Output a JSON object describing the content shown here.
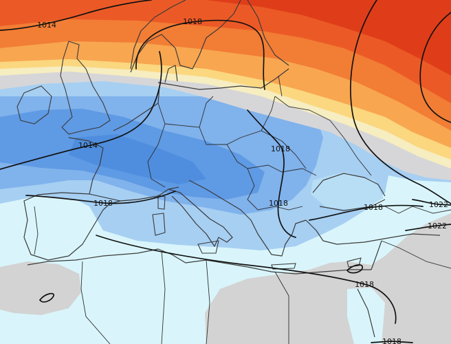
{
  "map": {
    "isobar_labels": [
      "1014",
      "1018",
      "1014",
      "1018",
      "1018",
      "1018",
      "1018",
      "1022",
      "1022",
      "1018",
      "1018"
    ]
  },
  "palette": {
    "cyan_pale": "#d9f5fb",
    "blue_light": "#a6cff2",
    "blue_medium": "#80b2ec",
    "blue_deep": "#5f9ae4",
    "blue_core": "#4f8ede",
    "black_sea_blue": "#b8def6",
    "neutral_gray": "#d6d6d8",
    "pale_yellow": "#f6edc0",
    "yellow": "#fbd77f",
    "warm_light": "#f8a650",
    "warm_orange": "#f27d35",
    "warm_red": "#eb5a26",
    "warm_deep": "#df3d19",
    "land_gray": "#d3d3d3"
  }
}
